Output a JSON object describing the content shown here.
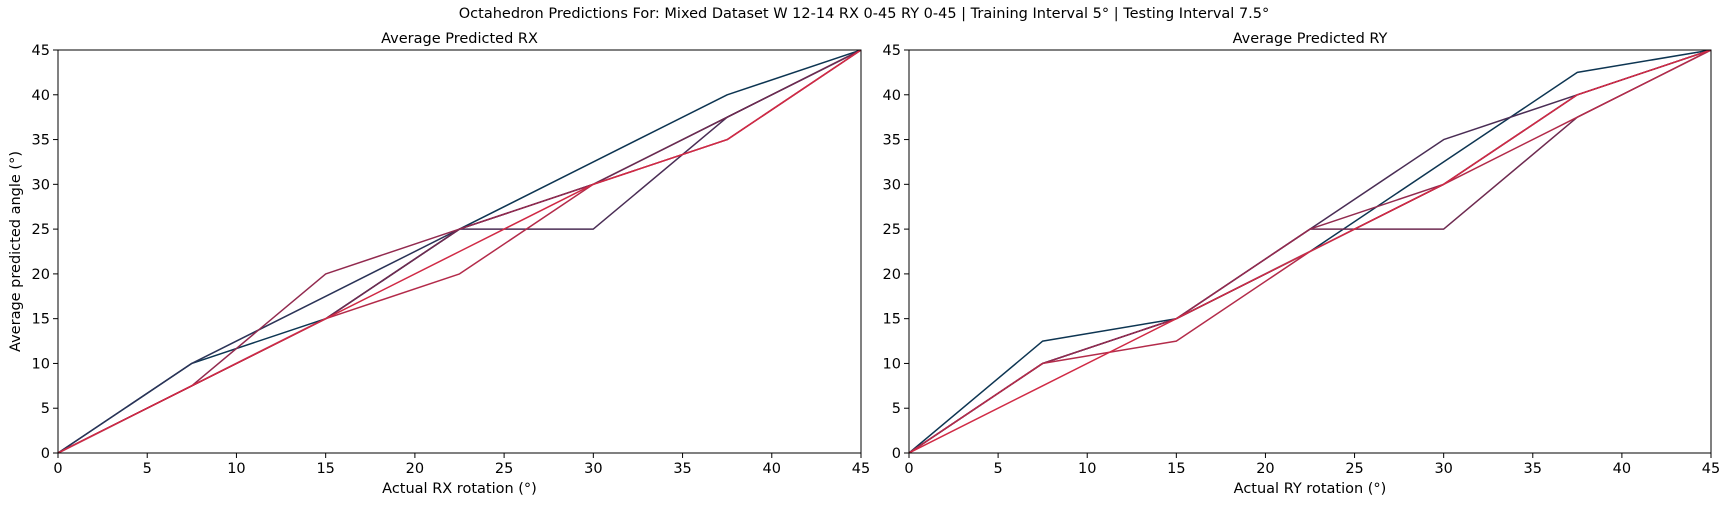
{
  "suptitle": "Octahedron Predictions For: Mixed Dataset W 12-14 RX 0-45 RY 0-45 | Training Interval 5° | Testing Interval 7.5°",
  "chart_data": [
    {
      "type": "line",
      "title": "Average Predicted RX",
      "xlabel": "Actual RX rotation (°)",
      "ylabel": "Average predicted angle (°)",
      "xlim": [
        0,
        45
      ],
      "ylim": [
        0,
        45
      ],
      "xticks": [
        0,
        5,
        10,
        15,
        20,
        25,
        30,
        35,
        40,
        45
      ],
      "yticks": [
        0,
        5,
        10,
        15,
        20,
        25,
        30,
        35,
        40,
        45
      ],
      "grid": false,
      "x": [
        0,
        7.5,
        15,
        22.5,
        30,
        37.5,
        45
      ],
      "series": [
        {
          "color": "#0d3552",
          "values": [
            0,
            10,
            15,
            25,
            32.5,
            40,
            45
          ]
        },
        {
          "color": "#2a3357",
          "values": [
            0,
            10,
            17.5,
            25,
            30,
            37.5,
            45
          ]
        },
        {
          "color": "#4a2d55",
          "values": [
            0,
            7.5,
            15,
            25,
            25,
            37.5,
            45
          ]
        },
        {
          "color": "#6e2a50",
          "values": [
            0,
            7.5,
            15,
            25,
            30,
            37.5,
            45
          ]
        },
        {
          "color": "#922a4f",
          "values": [
            0,
            7.5,
            20,
            25,
            30,
            35,
            45
          ]
        },
        {
          "color": "#b32b4a",
          "values": [
            0,
            7.5,
            15,
            20,
            30,
            35,
            45
          ]
        },
        {
          "color": "#d02a45",
          "values": [
            0,
            7.5,
            15,
            22.5,
            30,
            35,
            45
          ]
        }
      ]
    },
    {
      "type": "line",
      "title": "Average Predicted RY",
      "xlabel": "Actual RY rotation (°)",
      "ylabel": "",
      "xlim": [
        0,
        45
      ],
      "ylim": [
        0,
        45
      ],
      "xticks": [
        0,
        5,
        10,
        15,
        20,
        25,
        30,
        35,
        40,
        45
      ],
      "yticks": [
        0,
        5,
        10,
        15,
        20,
        25,
        30,
        35,
        40,
        45
      ],
      "grid": false,
      "x": [
        0,
        7.5,
        15,
        22.5,
        30,
        37.5,
        45
      ],
      "series": [
        {
          "color": "#0d3552",
          "values": [
            0,
            12.5,
            15,
            22.5,
            32.5,
            42.5,
            45
          ]
        },
        {
          "color": "#2a3357",
          "values": [
            0,
            10,
            15,
            22.5,
            30,
            40,
            45
          ]
        },
        {
          "color": "#4a2d55",
          "values": [
            0,
            10,
            15,
            25,
            35,
            40,
            45
          ]
        },
        {
          "color": "#6e2a50",
          "values": [
            0,
            10,
            15,
            25,
            25,
            37.5,
            45
          ]
        },
        {
          "color": "#922a4f",
          "values": [
            0,
            10,
            15,
            25,
            30,
            40,
            45
          ]
        },
        {
          "color": "#b32b4a",
          "values": [
            0,
            10,
            12.5,
            22.5,
            30,
            37.5,
            45
          ]
        },
        {
          "color": "#d02a45",
          "values": [
            0,
            7.5,
            15,
            22.5,
            30,
            40,
            45
          ]
        }
      ]
    }
  ]
}
